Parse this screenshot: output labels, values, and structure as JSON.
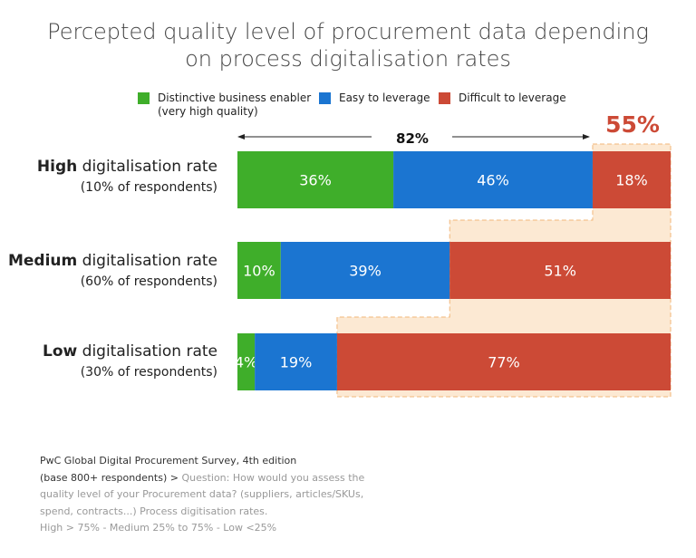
{
  "chart_data": {
    "type": "bar",
    "orientation": "horizontal",
    "stacked": true,
    "title": "Percepted quality level of procurement data depending on process digitalisation rates",
    "title_lines": [
      "Percepted quality level of procurement data depending",
      "on process digitalisation rates"
    ],
    "categories": [
      {
        "bold": "High",
        "rest": " digitalisation rate",
        "sub": "(10% of respondents)"
      },
      {
        "bold": "Medium",
        "rest": " digitalisation rate",
        "sub": "(60% of respondents)"
      },
      {
        "bold": "Low",
        "rest": " digitalisation rate",
        "sub": "(30% of respondents)"
      }
    ],
    "series": [
      {
        "name": "Distinctive business enabler (very high quality)",
        "name_lines": [
          "Distinctive business enabler",
          "(very high quality)"
        ],
        "color": "#3fae2a",
        "values": [
          36,
          10,
          4
        ]
      },
      {
        "name": "Easy to leverage",
        "color": "#1b75d1",
        "values": [
          46,
          39,
          19
        ]
      },
      {
        "name": "Difficult to leverage",
        "color": "#cc4a36",
        "values": [
          18,
          51,
          77
        ]
      }
    ],
    "data_labels": [
      [
        "36%",
        "46%",
        "18%"
      ],
      [
        "10%",
        "39%",
        "51%"
      ],
      [
        "4%",
        "19%",
        "77%"
      ]
    ],
    "legend_position": "top",
    "annotations": {
      "high_span_label": "82%",
      "highlight_label": "55%",
      "highlight_color": "#cc4a36",
      "highlight_fill": "#fce9d3"
    },
    "xlim": [
      0,
      100
    ],
    "grid": false
  },
  "source": {
    "line1": "PwC Global Digital Procurement Survey, 4th edition",
    "line2_dark": "(base 800+ respondents) >",
    "line2_rest": " Question: How would you assess the",
    "line3": "quality level of your Procurement data? (suppliers, articles/SKUs,",
    "line4": "spend, contracts...) Process digitisation rates.",
    "line5": "High > 75% - Medium 25% to 75% - Low <25%"
  }
}
